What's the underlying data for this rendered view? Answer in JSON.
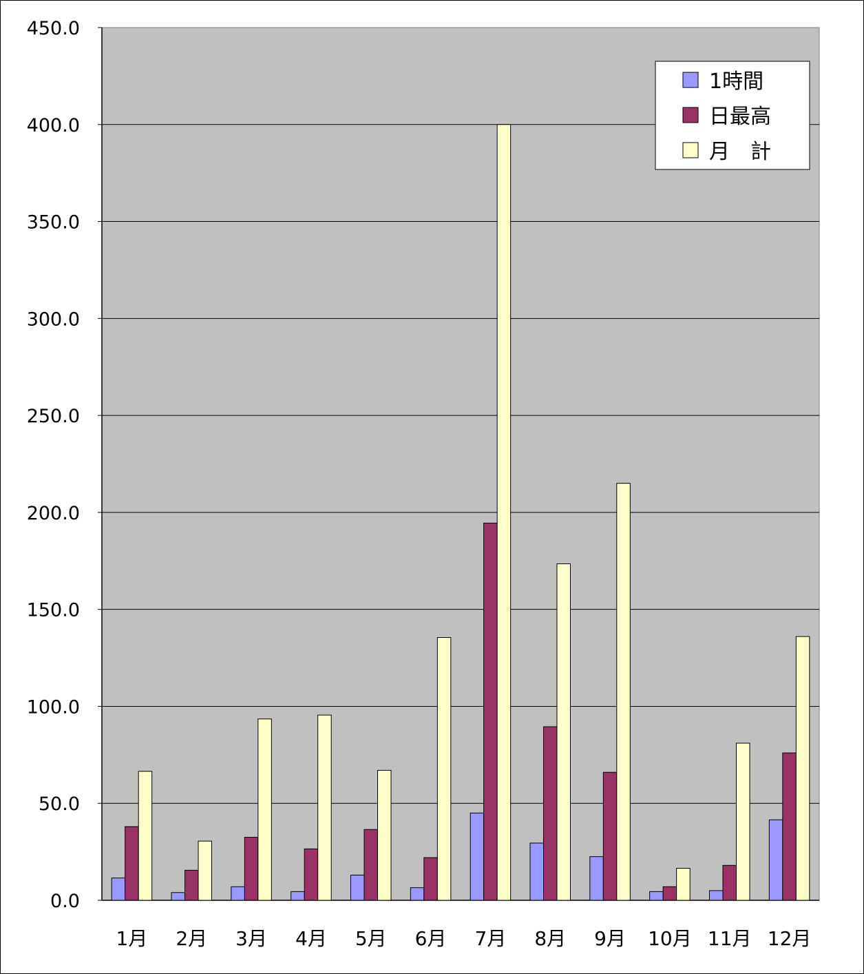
{
  "chart_data": {
    "type": "bar",
    "categories": [
      "1月",
      "2月",
      "3月",
      "4月",
      "5月",
      "6月",
      "7月",
      "8月",
      "9月",
      "10月",
      "11月",
      "12月"
    ],
    "series": [
      {
        "name": "1時間",
        "color": "#9999ff",
        "values": [
          11.5,
          4.0,
          7.0,
          4.5,
          13.0,
          6.5,
          45.0,
          29.5,
          22.5,
          4.5,
          5.0,
          41.5
        ]
      },
      {
        "name": "日最高",
        "color": "#993366",
        "values": [
          38.0,
          15.5,
          32.5,
          26.5,
          36.5,
          22.0,
          194.5,
          89.5,
          66.0,
          7.0,
          18.0,
          76.0
        ]
      },
      {
        "name": "月　計",
        "color": "#ffffcc",
        "values": [
          66.5,
          30.5,
          93.5,
          95.5,
          67.0,
          135.5,
          400.0,
          173.5,
          215.0,
          16.5,
          81.0,
          136.0
        ]
      }
    ],
    "ylim": [
      0,
      450
    ],
    "yticks": [
      "0.0",
      "50.0",
      "100.0",
      "150.0",
      "200.0",
      "250.0",
      "300.0",
      "350.0",
      "400.0",
      "450.0"
    ],
    "plot_background": "#c0c0c0",
    "grid": true,
    "legend_position": "top-right"
  }
}
